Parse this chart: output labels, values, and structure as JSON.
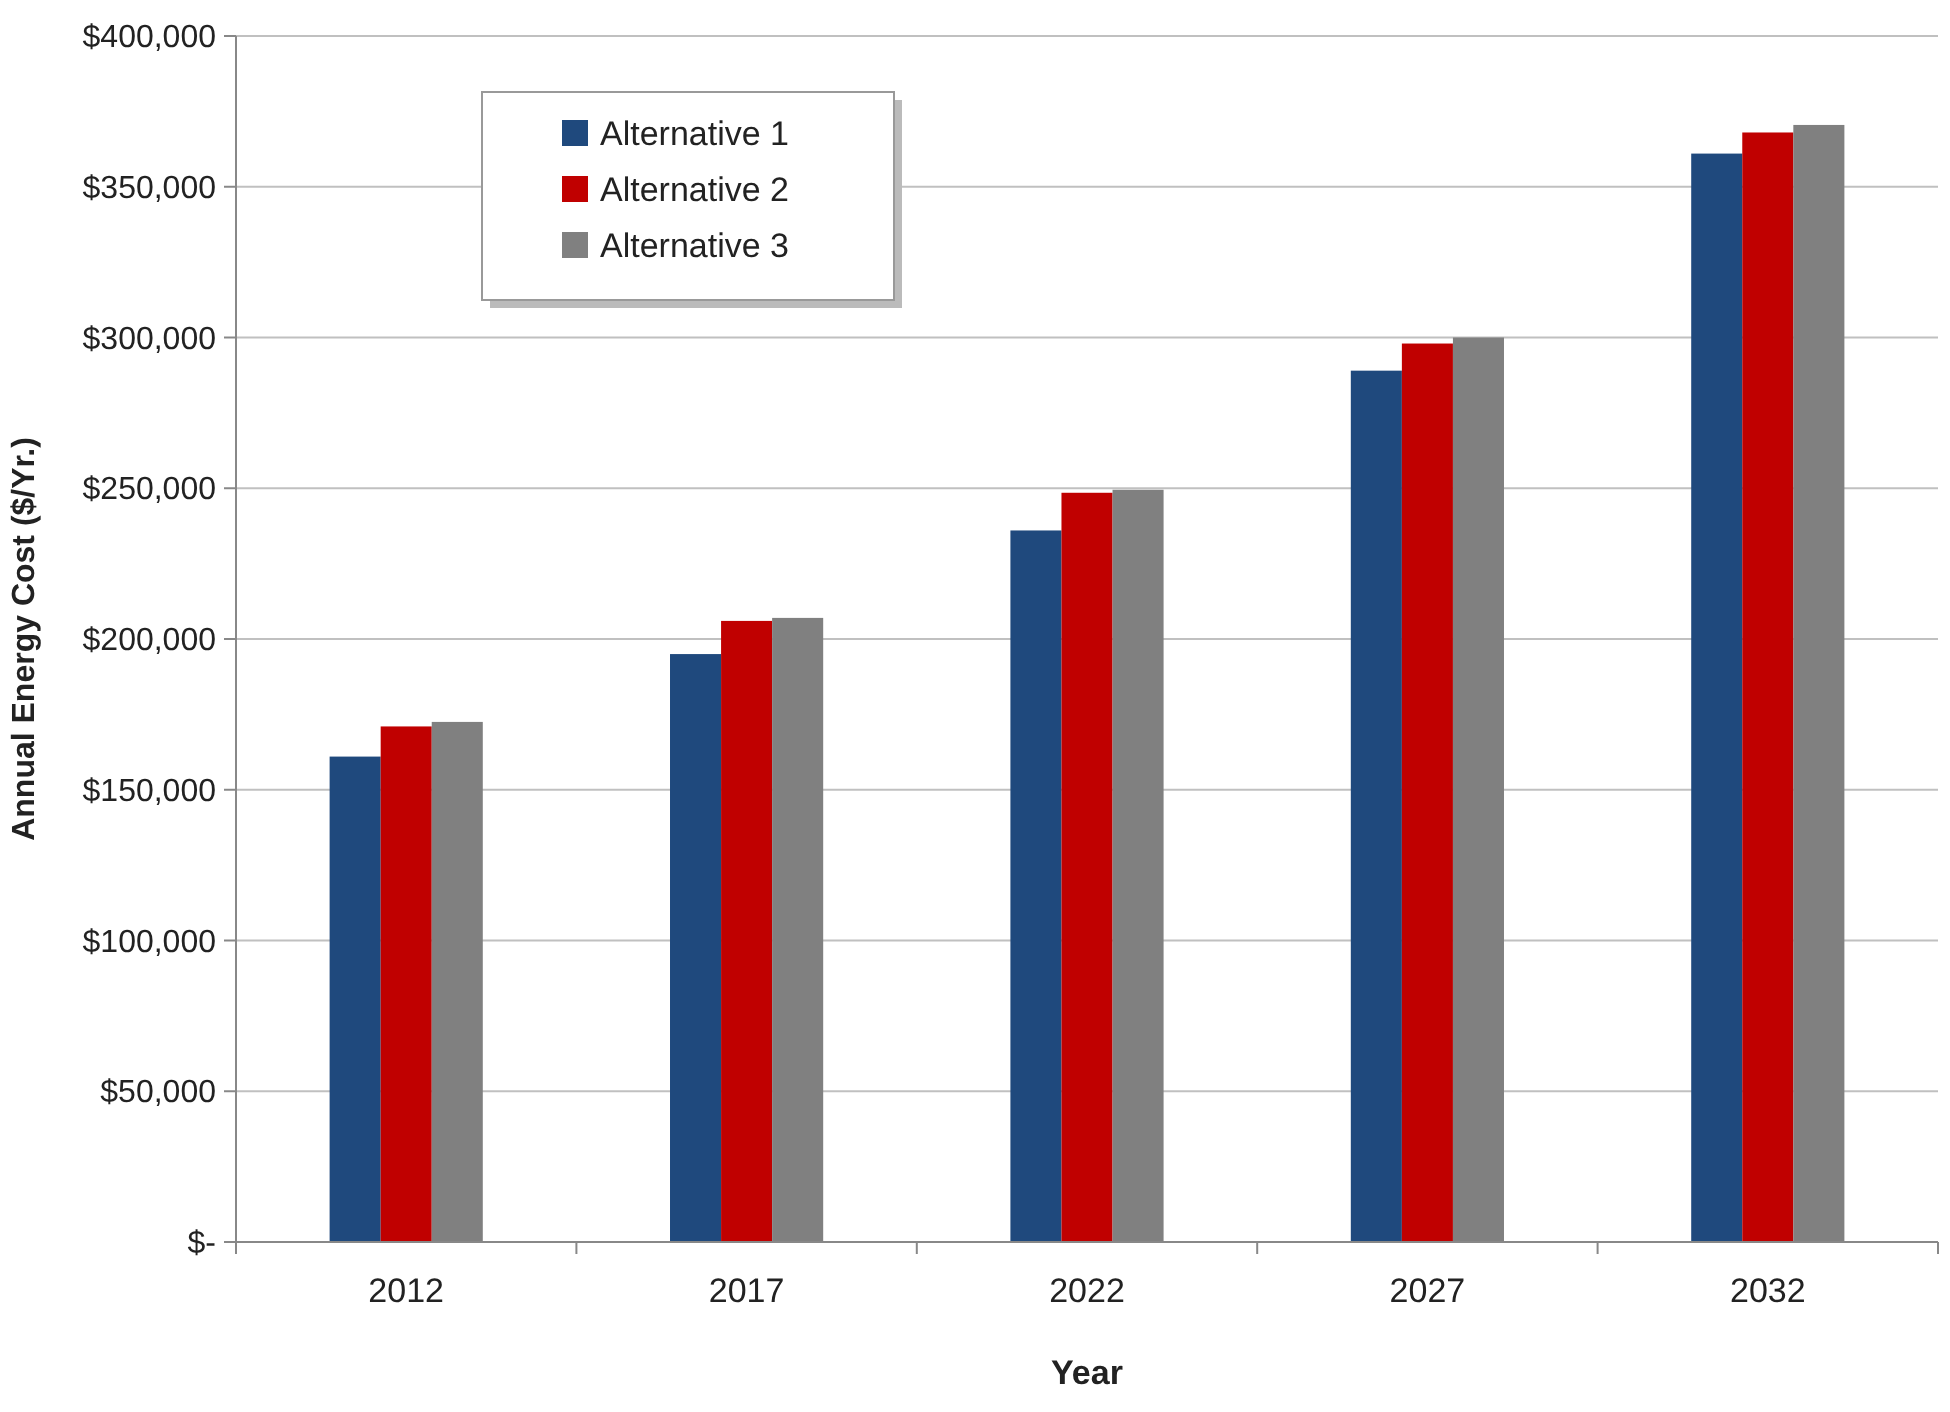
{
  "chart_data": {
    "type": "bar",
    "xlabel": "Year",
    "ylabel": "Annual Energy Cost ($/Yr.)",
    "categories": [
      "2012",
      "2017",
      "2022",
      "2027",
      "2032"
    ],
    "series": [
      {
        "name": "Alternative 1",
        "color": "#1f497d",
        "values": [
          161000,
          195000,
          236000,
          289000,
          361000
        ]
      },
      {
        "name": "Alternative 2",
        "color": "#c00000",
        "values": [
          171000,
          206000,
          248500,
          298000,
          368000
        ]
      },
      {
        "name": "Alternative 3",
        "color": "#808080",
        "values": [
          172500,
          207000,
          249500,
          300000,
          370500
        ]
      }
    ],
    "ylim": [
      0,
      400000
    ],
    "yticks": [
      {
        "value": 0,
        "label": "$-"
      },
      {
        "value": 50000,
        "label": "$50,000"
      },
      {
        "value": 100000,
        "label": "$100,000"
      },
      {
        "value": 150000,
        "label": "$150,000"
      },
      {
        "value": 200000,
        "label": "$200,000"
      },
      {
        "value": 250000,
        "label": "$250,000"
      },
      {
        "value": 300000,
        "label": "$300,000"
      },
      {
        "value": 350000,
        "label": "$350,000"
      },
      {
        "value": 400000,
        "label": "$400,000"
      }
    ],
    "grid": "y",
    "legend": "top left"
  }
}
